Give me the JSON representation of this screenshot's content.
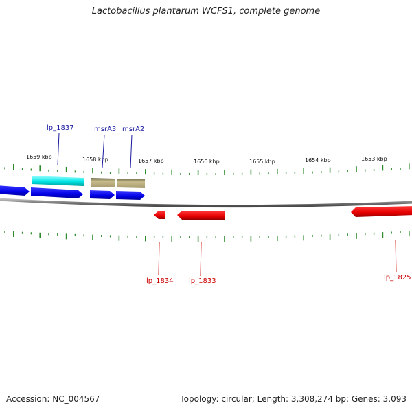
{
  "title": "Lactobacillus plantarum WCFS1, complete genome",
  "accession_text": "Accession: NC_004567",
  "summary_text": "Topology: circular; Length: 3,308,274 bp; Genes: 3,093",
  "colors": {
    "backbone": "#8a8a8a",
    "ticks": "#2e8b2e",
    "forward_cds": "#0000ee",
    "forward_gene": "#00e5e5",
    "forward_rna": "#b4a878",
    "reverse_cds": "#ee0000",
    "forward_label": "#1a1aa0",
    "reverse_label": "#cc0000"
  },
  "scale_labels": [
    "1659 kbp",
    "1658 kbp",
    "1657 kbp",
    "1656 kbp",
    "1655 kbp",
    "1654 kbp",
    "1653 kbp"
  ],
  "forward_labels": [
    "lp_1837",
    "msrA3",
    "msrA2"
  ],
  "reverse_labels": [
    "lp_1834",
    "lp_1833",
    "lp_1825"
  ]
}
